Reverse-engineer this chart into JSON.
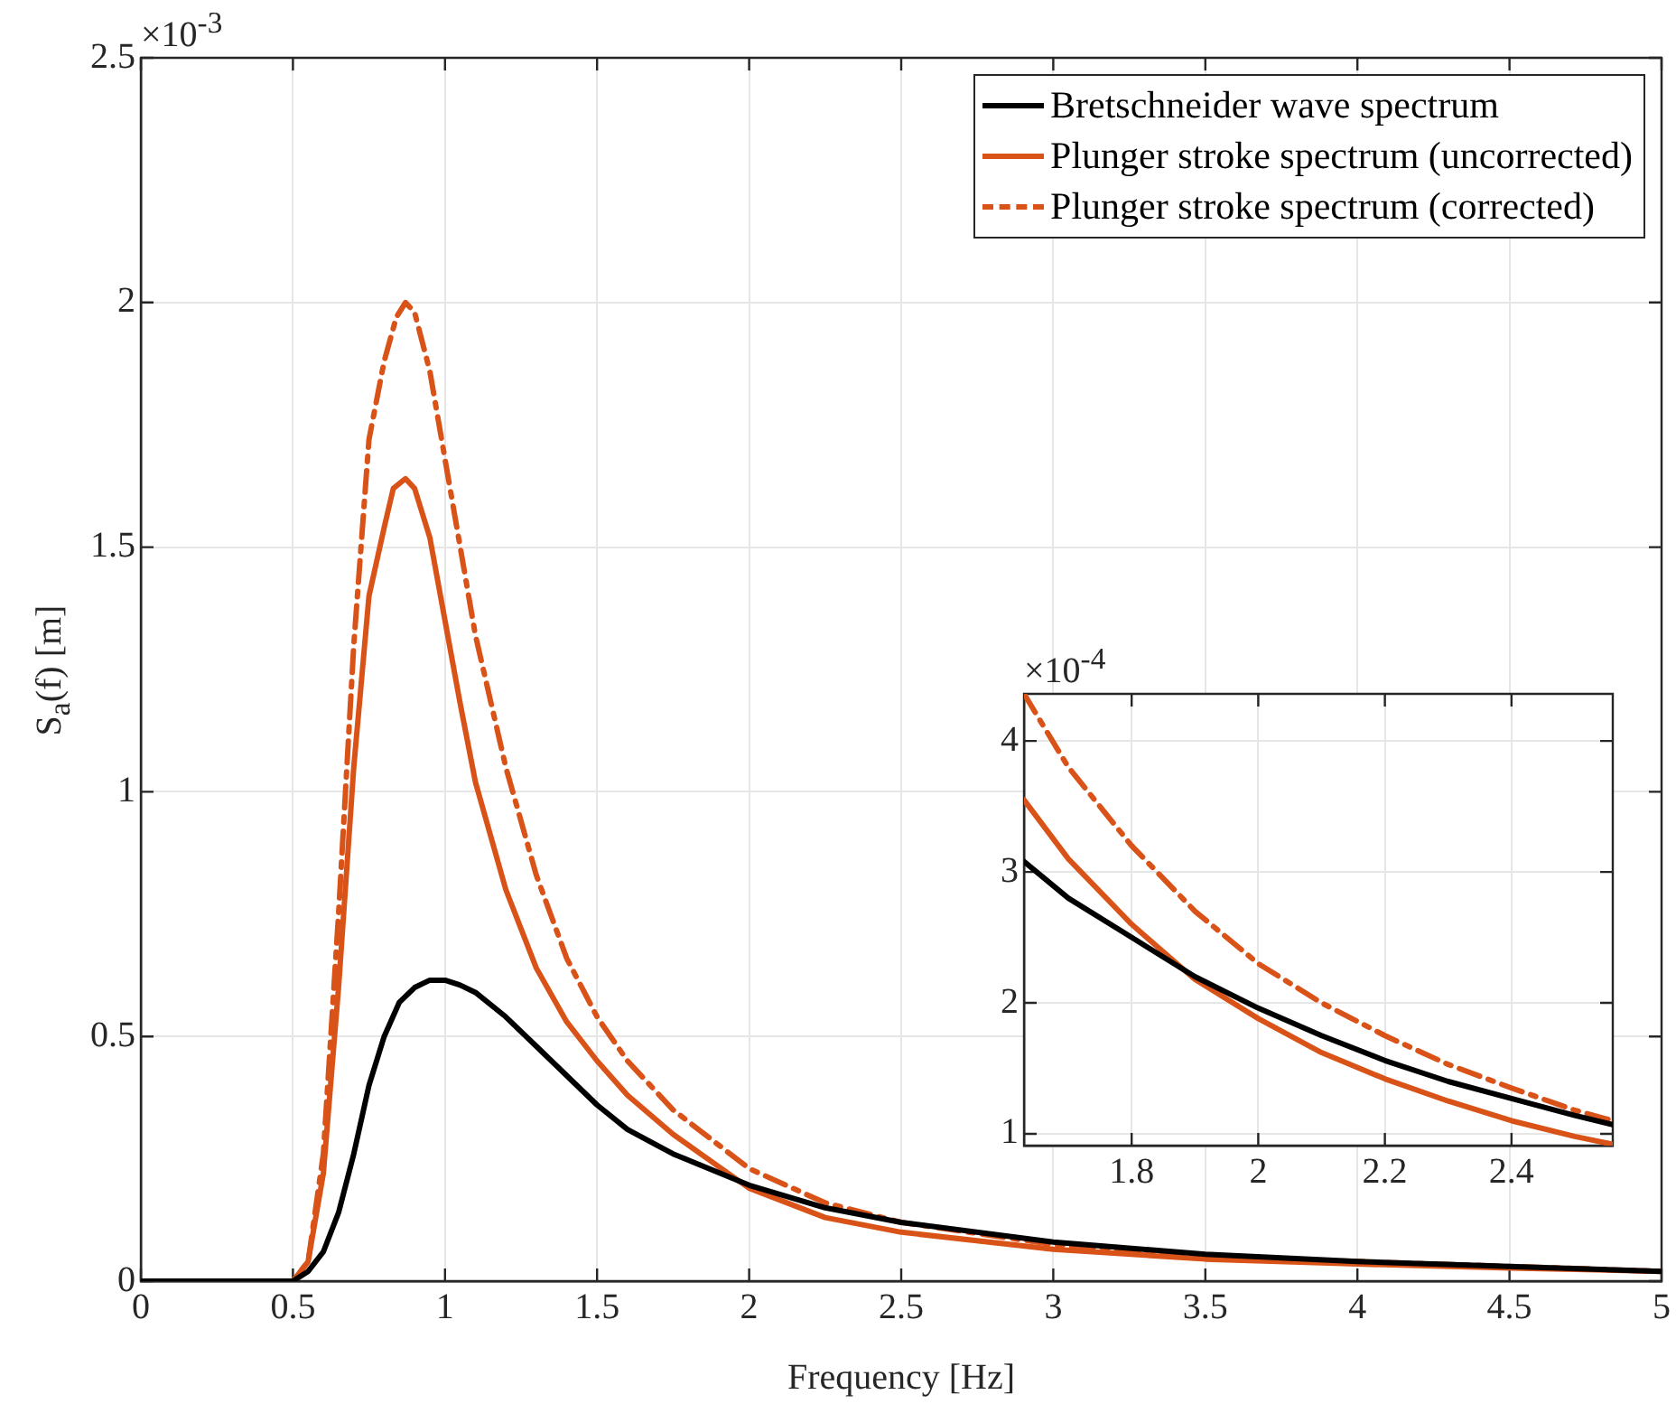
{
  "chart_data": [
    {
      "type": "line",
      "xlabel": "Frequency [Hz]",
      "ylabel": "S$_{a}$(f) [m]",
      "annotations": [
        "×10$^{-3}$"
      ],
      "xlim": [
        0,
        5
      ],
      "ylim": [
        0,
        2.5
      ],
      "xticks": [
        0,
        0.5,
        1,
        1.5,
        2,
        2.5,
        3,
        3.5,
        4,
        4.5,
        5
      ],
      "yticks": [
        0,
        0.5,
        1,
        1.5,
        2,
        2.5
      ],
      "grid": true,
      "legend": "top right",
      "series": [
        {
          "name": "Bretschneider wave spectrum",
          "color": "#000000",
          "line_style": "solid",
          "x": [
            0,
            0.5,
            0.55,
            0.6,
            0.65,
            0.7,
            0.75,
            0.8,
            0.85,
            0.9,
            0.95,
            1.0,
            1.05,
            1.1,
            1.2,
            1.3,
            1.4,
            1.5,
            1.6,
            1.75,
            2.0,
            2.25,
            2.5,
            3.0,
            3.5,
            4.0,
            4.5,
            5.0
          ],
          "values": [
            0,
            0,
            0.02,
            0.06,
            0.14,
            0.26,
            0.4,
            0.5,
            0.57,
            0.6,
            0.615,
            0.615,
            0.605,
            0.59,
            0.54,
            0.48,
            0.42,
            0.36,
            0.31,
            0.26,
            0.196,
            0.15,
            0.12,
            0.08,
            0.055,
            0.04,
            0.03,
            0.02
          ]
        },
        {
          "name": "Plunger stroke spectrum (uncorrected)",
          "color": "#d95319",
          "line_style": "solid",
          "x": [
            0,
            0.5,
            0.55,
            0.6,
            0.65,
            0.7,
            0.75,
            0.8,
            0.83,
            0.87,
            0.9,
            0.95,
            1.0,
            1.05,
            1.1,
            1.2,
            1.3,
            1.4,
            1.5,
            1.6,
            1.75,
            2.0,
            2.25,
            2.5,
            3.0,
            3.5,
            4.0,
            4.5,
            5.0
          ],
          "values": [
            0,
            0,
            0.04,
            0.22,
            0.6,
            1.05,
            1.4,
            1.54,
            1.62,
            1.64,
            1.62,
            1.52,
            1.35,
            1.18,
            1.02,
            0.8,
            0.64,
            0.53,
            0.45,
            0.38,
            0.3,
            0.19,
            0.13,
            0.1,
            0.065,
            0.045,
            0.035,
            0.027,
            0.02
          ]
        },
        {
          "name": "Plunger stroke spectrum (corrected)",
          "color": "#d95319",
          "line_style": "dashed",
          "x": [
            0,
            0.5,
            0.55,
            0.6,
            0.65,
            0.7,
            0.75,
            0.8,
            0.84,
            0.87,
            0.9,
            0.95,
            1.0,
            1.05,
            1.1,
            1.2,
            1.3,
            1.4,
            1.5,
            1.6,
            1.75,
            2.0,
            2.25,
            2.5,
            3.0,
            3.5,
            4.0,
            4.5,
            5.0
          ],
          "values": [
            0,
            0,
            0.04,
            0.26,
            0.75,
            1.3,
            1.72,
            1.88,
            1.97,
            2.0,
            1.98,
            1.86,
            1.68,
            1.5,
            1.32,
            1.05,
            0.83,
            0.66,
            0.54,
            0.45,
            0.35,
            0.23,
            0.16,
            0.12,
            0.075,
            0.05,
            0.04,
            0.03,
            0.02
          ]
        }
      ]
    },
    {
      "type": "line",
      "annotations": [
        "×10$^{-4}$"
      ],
      "xlim": [
        1.63,
        2.56
      ],
      "ylim": [
        0.91,
        4.36
      ],
      "xticks": [
        1.8,
        2,
        2.2,
        2.4
      ],
      "yticks": [
        1,
        2,
        3,
        4
      ],
      "grid": true,
      "series": [
        {
          "color": "#000000",
          "line_style": "solid",
          "x": [
            1.63,
            1.7,
            1.8,
            1.9,
            2.0,
            2.1,
            2.2,
            2.3,
            2.4,
            2.5,
            2.56
          ],
          "values": [
            3.08,
            2.8,
            2.5,
            2.2,
            1.96,
            1.75,
            1.56,
            1.4,
            1.27,
            1.14,
            1.07
          ]
        },
        {
          "color": "#d95319",
          "line_style": "solid",
          "x": [
            1.63,
            1.7,
            1.8,
            1.9,
            2.0,
            2.1,
            2.2,
            2.3,
            2.4,
            2.5,
            2.56
          ],
          "values": [
            3.55,
            3.1,
            2.6,
            2.18,
            1.88,
            1.62,
            1.42,
            1.25,
            1.1,
            0.98,
            0.92
          ]
        },
        {
          "color": "#d95319",
          "line_style": "dashed",
          "x": [
            1.63,
            1.7,
            1.8,
            1.9,
            2.0,
            2.1,
            2.2,
            2.3,
            2.4,
            2.5,
            2.56
          ],
          "values": [
            4.36,
            3.8,
            3.2,
            2.7,
            2.3,
            2.0,
            1.75,
            1.53,
            1.35,
            1.18,
            1.1
          ]
        }
      ]
    }
  ]
}
